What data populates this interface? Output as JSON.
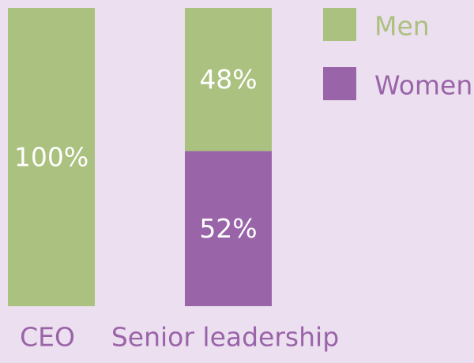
{
  "colors": {
    "background": "#ecdfef",
    "men": "#abc17f",
    "women": "#9a64a9"
  },
  "chart_data": {
    "type": "bar",
    "stacked": true,
    "categories": [
      "CEO",
      "Senior leadership"
    ],
    "series": [
      {
        "name": "Men",
        "values": [
          100,
          48
        ],
        "labels": [
          "100%",
          "48%"
        ]
      },
      {
        "name": "Women",
        "values": [
          0,
          52
        ],
        "labels": [
          "",
          "52%"
        ]
      }
    ],
    "ylim": [
      0,
      100
    ],
    "grid": false,
    "legend_position": "top-right"
  }
}
